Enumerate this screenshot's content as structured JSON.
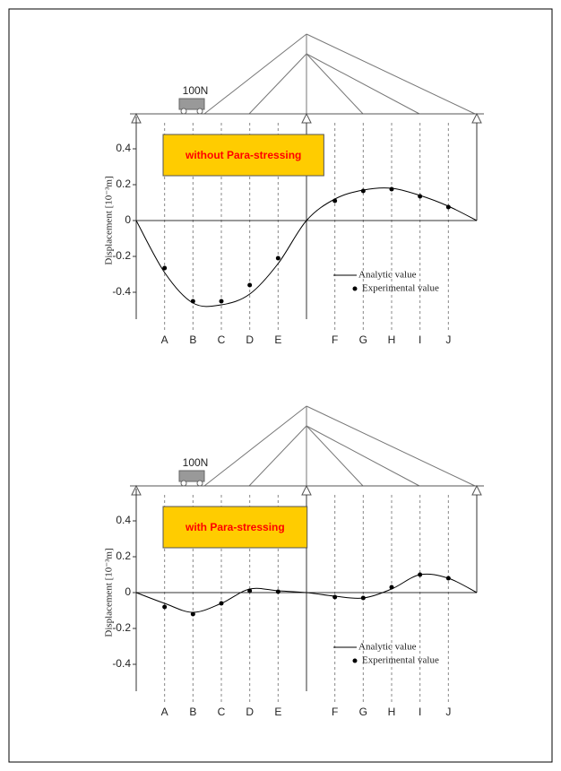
{
  "chart_data": [
    {
      "type": "line",
      "title": "without Para-stressing",
      "load_label": "100N",
      "y_label": "Displacement [10⁻³m]",
      "categories": [
        null,
        "A",
        "B",
        "C",
        "D",
        "E",
        null,
        "F",
        "G",
        "H",
        "I",
        "J",
        null
      ],
      "series": [
        {
          "name": "Analytic value",
          "color": "#000000",
          "style": "line",
          "values": [
            0,
            -0.29,
            -0.46,
            -0.47,
            -0.41,
            -0.24,
            0,
            0.12,
            0.17,
            0.18,
            0.14,
            0.08,
            0
          ]
        },
        {
          "name": "Experimental value",
          "color": "#000000",
          "style": "marker",
          "values": [
            null,
            -0.265,
            -0.45,
            -0.45,
            -0.36,
            -0.21,
            null,
            0.11,
            0.165,
            0.175,
            0.135,
            0.075,
            null
          ]
        }
      ],
      "ylim": [
        -0.55,
        0.58
      ],
      "yticks": [
        0.4,
        0.2,
        0,
        -0.2,
        -0.4
      ]
    },
    {
      "type": "line",
      "title": "with Para-stressing",
      "load_label": "100N",
      "y_label": "Displacement [10⁻³m]",
      "categories": [
        null,
        "A",
        "B",
        "C",
        "D",
        "E",
        null,
        "F",
        "G",
        "H",
        "I",
        "J",
        null
      ],
      "series": [
        {
          "name": "Analytic value",
          "color": "#000000",
          "style": "line",
          "values": [
            0,
            -0.06,
            -0.11,
            -0.06,
            0.02,
            0.01,
            0,
            -0.02,
            -0.03,
            0.02,
            0.1,
            0.08,
            0
          ]
        },
        {
          "name": "Experimental value",
          "color": "#000000",
          "style": "marker",
          "values": [
            null,
            -0.08,
            -0.12,
            -0.06,
            0.01,
            0.005,
            null,
            -0.025,
            -0.03,
            0.03,
            0.1,
            0.08,
            null
          ]
        }
      ],
      "ylim": [
        -0.55,
        0.58
      ],
      "yticks": [
        0.4,
        0.2,
        0,
        -0.2,
        -0.4
      ]
    }
  ]
}
